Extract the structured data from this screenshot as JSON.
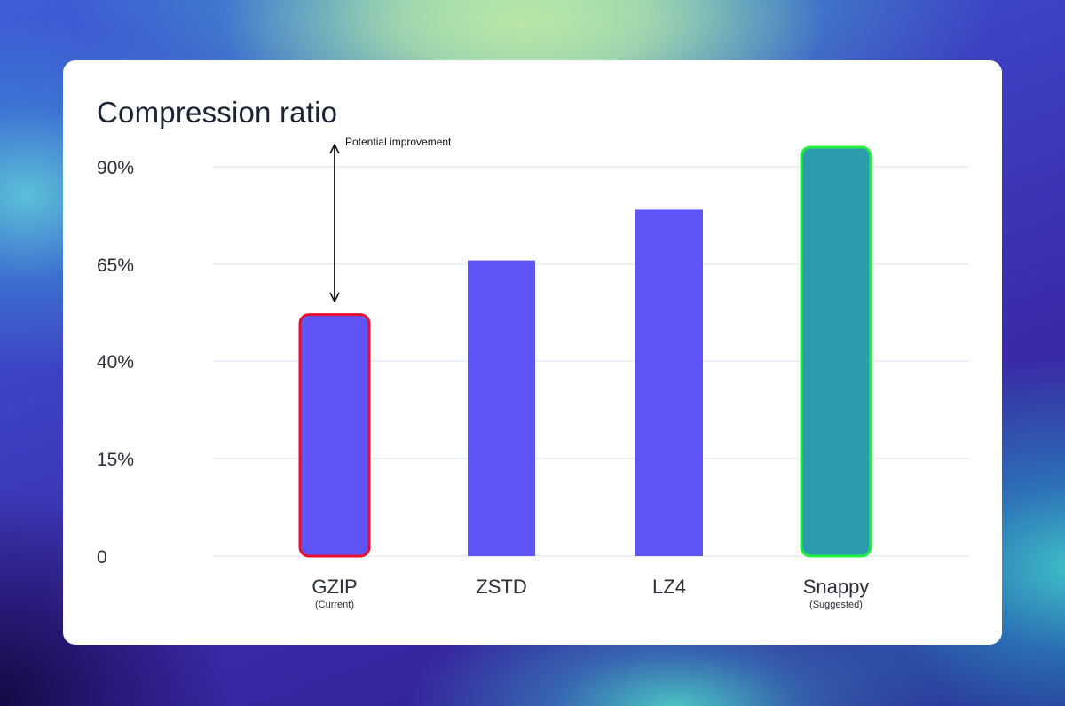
{
  "colors": {
    "bar": "#5f55f6",
    "suggested_bar": "#2c9dac",
    "current_outline": "#e8102e",
    "suggested_outline": "#22f040",
    "grid": "#edf0f5"
  },
  "chart_data": {
    "type": "bar",
    "title": "Compression ratio",
    "xlabel": "",
    "ylabel": "",
    "ylim": [
      0,
      90
    ],
    "yticks": [
      {
        "value": 0,
        "label": "0"
      },
      {
        "value": 15,
        "label": "15%"
      },
      {
        "value": 40,
        "label": "40%"
      },
      {
        "value": 65,
        "label": "65%"
      },
      {
        "value": 90,
        "label": "90%"
      }
    ],
    "categories": [
      "GZIP",
      "ZSTD",
      "LZ4",
      "Snappy"
    ],
    "sublabels": [
      "(Current)",
      "",
      "",
      "(Suggested)"
    ],
    "values": [
      52,
      66,
      79,
      95
    ],
    "annotation": {
      "text": "Potential improvement",
      "category": "GZIP",
      "from": 54,
      "to": 95
    }
  }
}
